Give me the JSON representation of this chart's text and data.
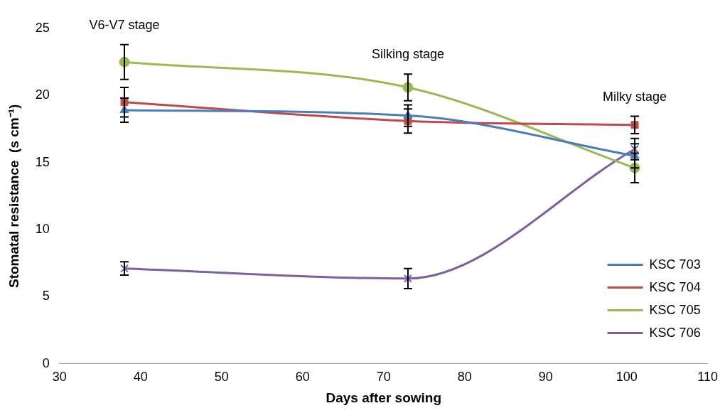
{
  "chart_data": {
    "type": "line",
    "xlabel": "Days after sowing",
    "ylabel": "Stomatal resistance  (s cm⁻¹)",
    "xlim": [
      30,
      110
    ],
    "xticks": [
      30,
      40,
      50,
      60,
      70,
      80,
      90,
      100,
      110
    ],
    "ylim": [
      0,
      25
    ],
    "yticks": [
      0,
      5,
      10,
      15,
      20,
      25
    ],
    "grid": false,
    "legend": "bottom right",
    "series": [
      {
        "name": "KSC 703",
        "color": "#4a7ebb",
        "marker": "triangle",
        "x": [
          38,
          73,
          101
        ],
        "values": [
          18.9,
          18.5,
          15.5
        ],
        "errors": [
          0.9,
          0.8,
          0.9
        ]
      },
      {
        "name": "KSC 704",
        "color": "#be4b48",
        "marker": "square",
        "x": [
          38,
          73,
          101
        ],
        "values": [
          19.5,
          18.1,
          17.8
        ],
        "errors": [
          1.1,
          0.9,
          0.65
        ]
      },
      {
        "name": "KSC 705",
        "color": "#98b954",
        "marker": "circle",
        "x": [
          38,
          73,
          101
        ],
        "values": [
          22.5,
          20.6,
          14.6
        ],
        "errors": [
          1.3,
          1.0,
          1.1
        ]
      },
      {
        "name": "KSC 706",
        "color": "#7d60a0",
        "marker": "cross",
        "x": [
          38,
          73,
          101
        ],
        "values": [
          7.1,
          6.35,
          16.0
        ],
        "errors": [
          0.5,
          0.75,
          0.8
        ]
      }
    ],
    "annotations": [
      "V6-V7 stage",
      "Silking stage",
      "Milky stage"
    ]
  }
}
